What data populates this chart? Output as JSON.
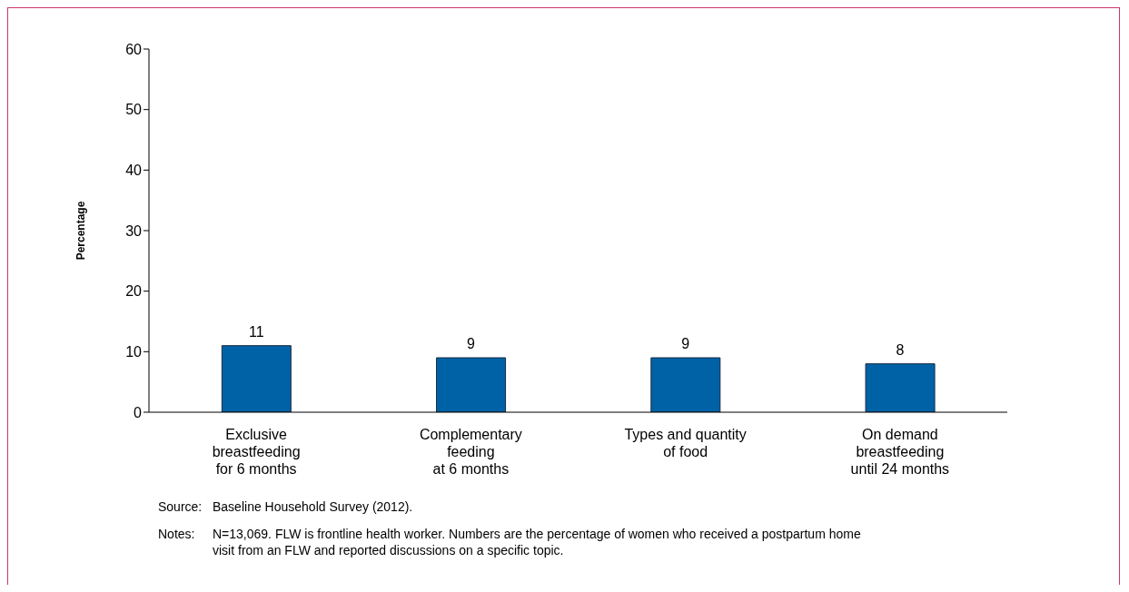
{
  "chart_data": {
    "type": "bar",
    "ylabel": "Percentage",
    "categories": [
      "Exclusive\nbreastfeeding\nfor 6 months",
      "Complementary\nfeeding\nat 6 months",
      "Types and quantity\nof food",
      "On demand\nbreastfeeding\nuntil 24 months"
    ],
    "values": [
      11,
      9,
      9,
      8
    ],
    "color": "#0062a6",
    "ylim": [
      0,
      60
    ],
    "yticks": [
      0,
      10,
      20,
      30,
      40,
      50,
      60
    ],
    "grid": false,
    "legend": false,
    "data_labels": true,
    "annotations": [
      "Source:\tBaseline Household Survey (2012).",
      "Notes:\tN=13,069.  FLW is frontline health worker. Numbers are the percentage of women who received a postpartum home visit from an FLW and reported discussions on a specific topic."
    ]
  }
}
